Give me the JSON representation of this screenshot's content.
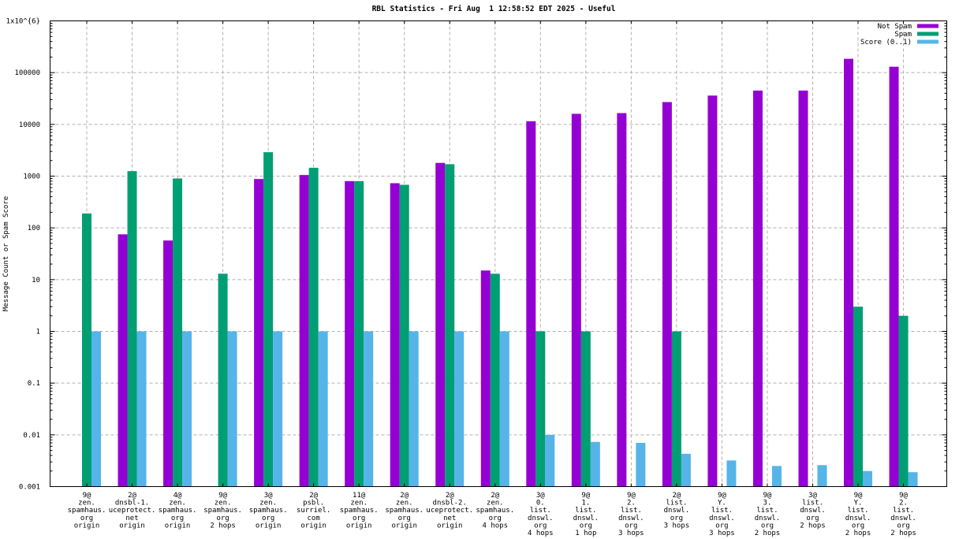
{
  "chart_data": {
    "type": "bar",
    "title": "RBL Statistics - Fri Aug  1 12:58:52 EDT 2025 - Useful",
    "ylabel": "Message Count or Spam Score",
    "xlabel": "",
    "y_scale": "log",
    "ylim": [
      0.001,
      1000000
    ],
    "grid": true,
    "legend_position": "top-right-inside",
    "colors": {
      "not_spam": "#9400d3",
      "spam": "#009e73",
      "score": "#56b4e9",
      "grid": "#b0b0b0",
      "axis": "#000000",
      "background": "#ffffff"
    },
    "y_ticks": [
      {
        "value": 1000000,
        "label": "1x10^{6}"
      },
      {
        "value": 100000,
        "label": "100000"
      },
      {
        "value": 10000,
        "label": "10000"
      },
      {
        "value": 1000,
        "label": "1000"
      },
      {
        "value": 100,
        "label": "100"
      },
      {
        "value": 10,
        "label": "10"
      },
      {
        "value": 1,
        "label": "1"
      },
      {
        "value": 0.1,
        "label": "0.1"
      },
      {
        "value": 0.01,
        "label": "0.01"
      },
      {
        "value": 0.001,
        "label": "0.001"
      }
    ],
    "categories": [
      [
        "9@",
        "zen.",
        "spamhaus.",
        "org",
        "origin"
      ],
      [
        "2@",
        "dnsbl-1.",
        "uceprotect.",
        "net",
        "origin"
      ],
      [
        "4@",
        "zen.",
        "spamhaus.",
        "org",
        "origin"
      ],
      [
        "9@",
        "zen.",
        "spamhaus.",
        "org",
        "2 hops"
      ],
      [
        "3@",
        "zen.",
        "spamhaus.",
        "org",
        "origin"
      ],
      [
        "2@",
        "psbl.",
        "surriel.",
        "com",
        "origin"
      ],
      [
        "11@",
        "zen.",
        "spamhaus.",
        "org",
        "origin"
      ],
      [
        "2@",
        "zen.",
        "spamhaus.",
        "org",
        "origin"
      ],
      [
        "2@",
        "dnsbl-2.",
        "uceprotect.",
        "net",
        "origin"
      ],
      [
        "2@",
        "zen.",
        "spamhaus.",
        "org",
        "4 hops"
      ],
      [
        "3@",
        "0.",
        "list.",
        "dnswl.",
        "org",
        "4 hops"
      ],
      [
        "9@",
        "1.",
        "list.",
        "dnswl.",
        "org",
        "1 hop"
      ],
      [
        "9@",
        "2.",
        "list.",
        "dnswl.",
        "org",
        "3 hops"
      ],
      [
        "2@",
        "list.",
        "dnswl.",
        "org",
        "3 hops"
      ],
      [
        "9@",
        "Y.",
        "list.",
        "dnswl.",
        "org",
        "3 hops"
      ],
      [
        "9@",
        "3.",
        "list.",
        "dnswl.",
        "org",
        "2 hops"
      ],
      [
        "3@",
        "list.",
        "dnswl.",
        "org",
        "2 hops"
      ],
      [
        "9@",
        "Y.",
        "list.",
        "dnswl.",
        "org",
        "2 hops"
      ],
      [
        "9@",
        "2.",
        "list.",
        "dnswl.",
        "org",
        "2 hops"
      ]
    ],
    "series": [
      {
        "name": "Not Spam",
        "color_key": "not_spam",
        "values": [
          0,
          75,
          57,
          0,
          880,
          1050,
          800,
          730,
          1800,
          15,
          11500,
          16000,
          16500,
          27000,
          36000,
          45000,
          45000,
          185000,
          130000
        ]
      },
      {
        "name": "Spam",
        "color_key": "spam",
        "values": [
          190,
          1250,
          900,
          13,
          2900,
          1450,
          800,
          680,
          1700,
          13,
          1,
          1,
          0,
          1,
          0,
          0,
          0,
          3,
          2
        ]
      },
      {
        "name": "Score (0..1)",
        "color_key": "score",
        "values": [
          1,
          1,
          1,
          1,
          1,
          1,
          1,
          1,
          1,
          1,
          0.01,
          0.0073,
          0.007,
          0.0043,
          0.0032,
          0.0025,
          0.0026,
          0.002,
          0.0019
        ]
      }
    ]
  }
}
